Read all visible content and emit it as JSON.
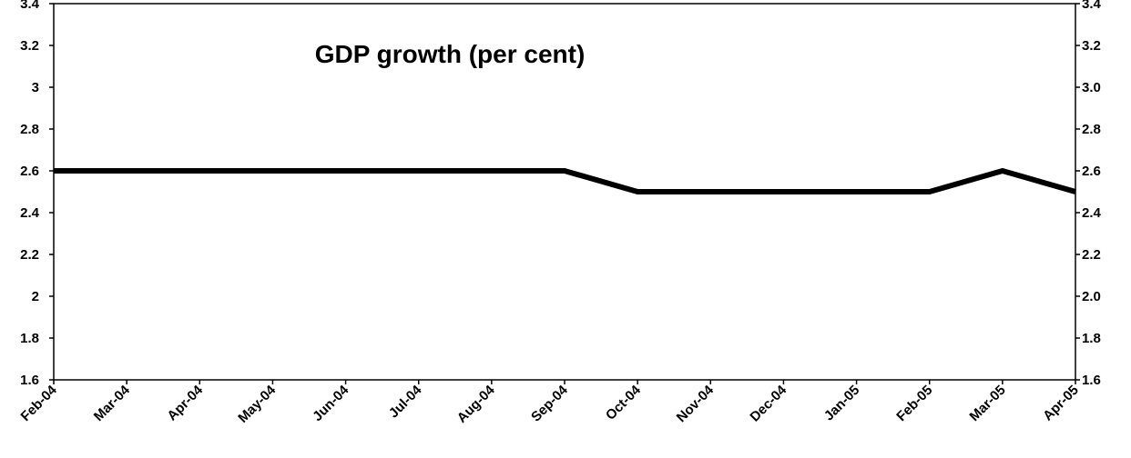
{
  "chart_data": {
    "type": "line",
    "title": "GDP growth (per cent)",
    "xlabel": "",
    "ylabel": "",
    "categories": [
      "Feb-04",
      "Mar-04",
      "Apr-04",
      "May-04",
      "Jun-04",
      "Jul-04",
      "Aug-04",
      "Sep-04",
      "Oct-04",
      "Nov-04",
      "Dec-04",
      "Jan-05",
      "Feb-05",
      "Mar-05",
      "Apr-05"
    ],
    "series": [
      {
        "values": [
          2.6,
          2.6,
          2.6,
          2.6,
          2.6,
          2.6,
          2.6,
          2.6,
          2.5,
          2.5,
          2.5,
          2.5,
          2.5,
          2.6,
          2.5
        ],
        "color": "#000000"
      }
    ],
    "ylim": [
      1.6,
      3.4
    ],
    "left_ticks": [
      "1.6",
      "1.8",
      "2",
      "2.2",
      "2.4",
      "2.6",
      "2.8",
      "3",
      "3.2",
      "3.4"
    ],
    "right_ticks": [
      "1.6",
      "1.8",
      "2.0",
      "2.2",
      "2.4",
      "2.6",
      "2.8",
      "3.0",
      "3.2",
      "3.4"
    ],
    "grid": false,
    "legend": "none"
  }
}
